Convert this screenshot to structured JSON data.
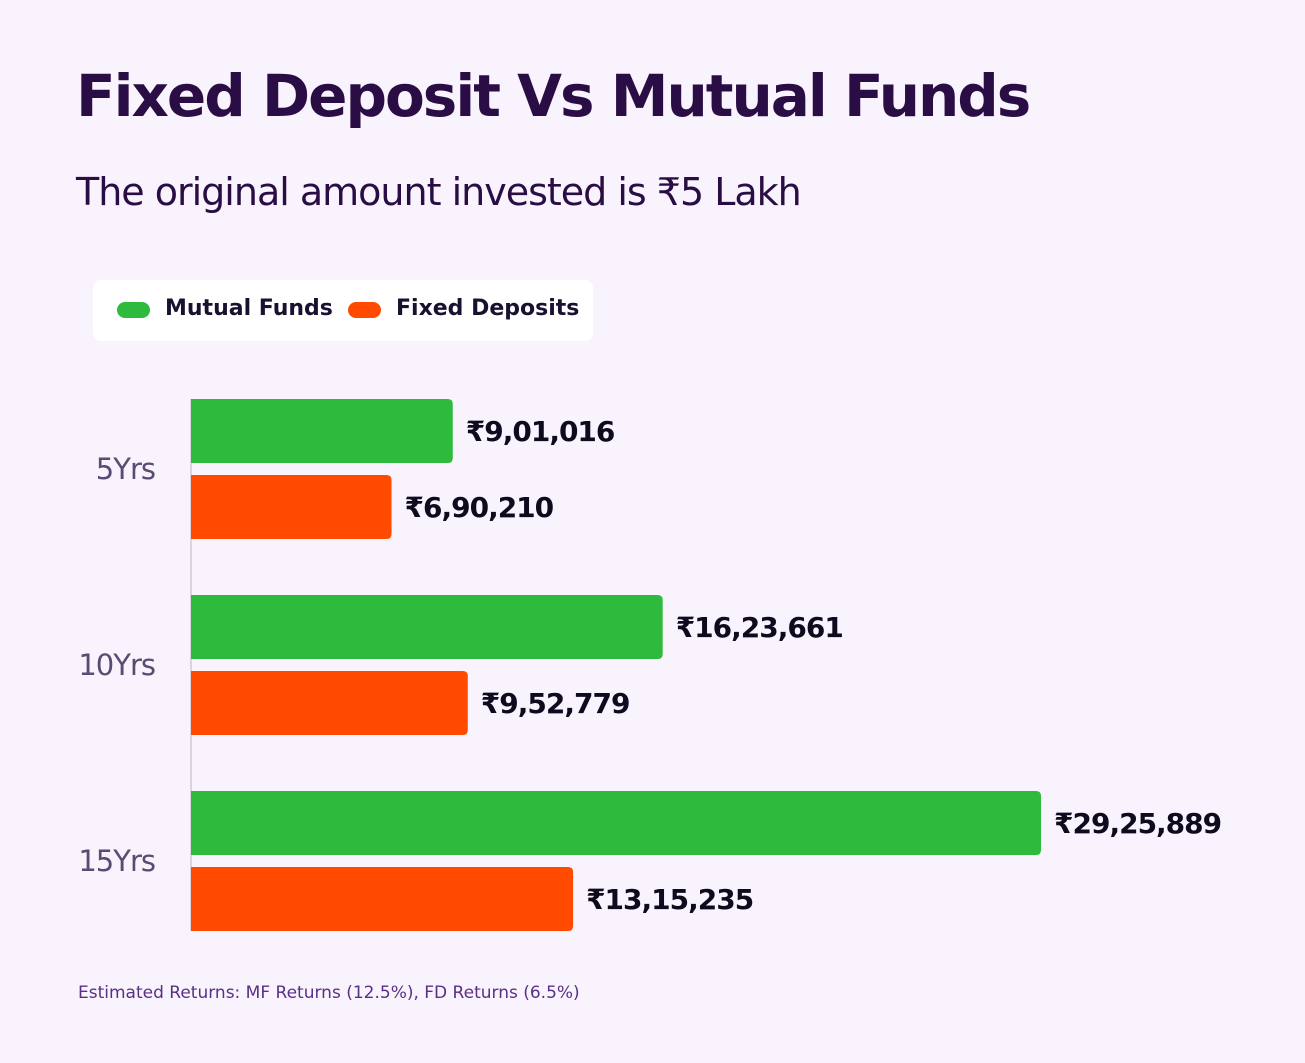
{
  "title": "Fixed Deposit Vs Mutual Funds",
  "subtitle": "The original amount invested is ₹5 Lakh",
  "footnote": "Estimated Returns: MF Returns (12.5%), FD Returns (6.5%)",
  "colors": {
    "mutual_funds": "#2ebb3d",
    "fixed_deposits": "#ff4a00",
    "background": "#f8f3fc",
    "title": "#2a0d45"
  },
  "chart_data": {
    "type": "bar",
    "orientation": "horizontal",
    "categories": [
      "5Yrs",
      "10Yrs",
      "15Yrs"
    ],
    "series": [
      {
        "name": "Mutual Funds",
        "color": "#2ebb3d",
        "values": [
          901016,
          1623661,
          2925889
        ],
        "labels": [
          "₹9,01,016",
          "₹16,23,661",
          "₹29,25,889"
        ]
      },
      {
        "name": "Fixed Deposits",
        "color": "#ff4a00",
        "values": [
          690210,
          952779,
          1315235
        ],
        "labels": [
          "₹6,90,210",
          "₹9,52,779",
          "₹13,15,235"
        ]
      }
    ],
    "legend": "top-left",
    "grid": false
  }
}
